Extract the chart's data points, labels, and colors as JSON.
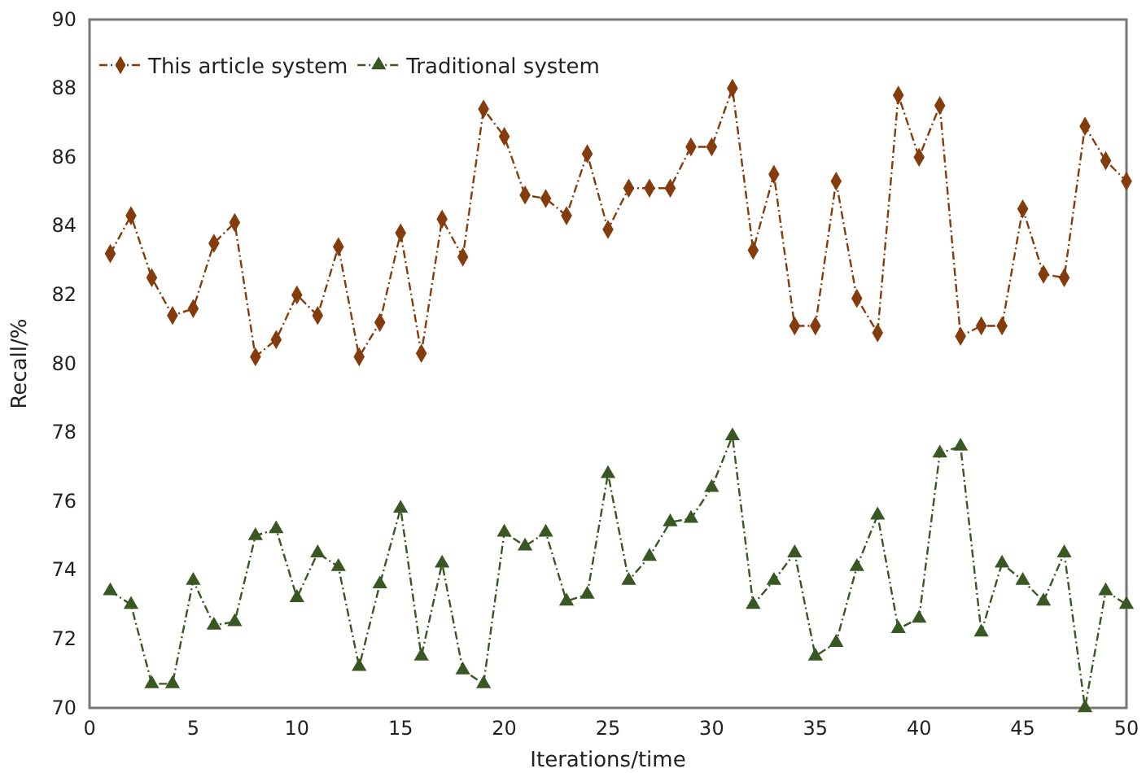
{
  "chart_data": {
    "type": "line",
    "xlabel": "Iterations/time",
    "ylabel": "Recall/%",
    "x": [
      1,
      2,
      3,
      4,
      5,
      6,
      7,
      8,
      9,
      10,
      11,
      12,
      13,
      14,
      15,
      16,
      17,
      18,
      19,
      20,
      21,
      22,
      23,
      24,
      25,
      26,
      27,
      28,
      29,
      30,
      31,
      32,
      33,
      34,
      35,
      36,
      37,
      38,
      39,
      40,
      41,
      42,
      43,
      44,
      45,
      46,
      47,
      48,
      49,
      50
    ],
    "series": [
      {
        "name": "This article system",
        "color": "#843c0c",
        "marker": "diamond",
        "values": [
          83.2,
          84.3,
          82.5,
          81.4,
          81.6,
          83.5,
          84.1,
          80.2,
          80.7,
          82.0,
          81.4,
          83.4,
          80.2,
          81.2,
          83.8,
          80.3,
          84.2,
          83.1,
          87.4,
          86.6,
          84.9,
          84.8,
          84.3,
          86.1,
          83.9,
          85.1,
          85.1,
          85.1,
          86.3,
          86.3,
          88.0,
          83.3,
          85.5,
          81.1,
          81.1,
          85.3,
          81.9,
          80.9,
          87.8,
          86.0,
          87.5,
          80.8,
          81.1,
          81.1,
          84.5,
          82.6,
          82.5,
          86.9,
          85.9,
          85.3
        ]
      },
      {
        "name": "Traditional system",
        "color": "#385723",
        "marker": "triangle",
        "values": [
          73.4,
          73.0,
          70.7,
          70.7,
          73.7,
          72.4,
          72.5,
          75.0,
          75.2,
          73.2,
          74.5,
          74.1,
          71.2,
          73.6,
          75.8,
          71.5,
          74.2,
          71.1,
          70.7,
          75.1,
          74.7,
          75.1,
          73.1,
          73.3,
          76.8,
          73.7,
          74.4,
          75.4,
          75.5,
          76.4,
          77.9,
          73.0,
          73.7,
          74.5,
          71.5,
          71.9,
          74.1,
          75.6,
          72.3,
          72.6,
          77.4,
          77.6,
          72.2,
          74.2,
          73.7,
          73.1,
          74.5,
          70.0,
          73.4,
          73.0
        ]
      }
    ],
    "xlim": [
      0,
      50
    ],
    "xticks": [
      0,
      5,
      10,
      15,
      20,
      25,
      30,
      35,
      40,
      45,
      50
    ],
    "ylim": [
      70,
      90
    ],
    "yticks": [
      70,
      72,
      74,
      76,
      78,
      80,
      82,
      84,
      86,
      88,
      90
    ],
    "grid": false,
    "legend": "top left",
    "line_style": "dashed"
  }
}
